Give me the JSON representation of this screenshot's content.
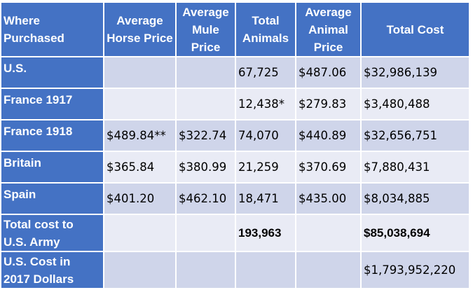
{
  "headers": [
    "Where Purchased",
    "Average Horse Price",
    "Average Mule Price",
    "Total Animals",
    "Average Animal Price",
    "Total Cost"
  ],
  "header_lines": {
    "where_1": "Where",
    "where_2": "Purchased",
    "horse_1": "Average",
    "horse_2": "Horse Price",
    "mule_1": "Average",
    "mule_2": "Mule",
    "mule_3": "Price",
    "total_1": "Total",
    "total_2": "Animals",
    "animal_1": "Average",
    "animal_2": "Animal",
    "animal_3": "Price",
    "cost_1": "Total Cost"
  },
  "rows": [
    {
      "label": "U.S.",
      "cells": [
        "",
        "",
        "67,725",
        "$487.06",
        "$32,986,139"
      ]
    },
    {
      "label": "France 1917",
      "cells": [
        "",
        "",
        "12,438*",
        "$279.83",
        "$3,480,488"
      ]
    },
    {
      "label": "France 1918",
      "cells": [
        "$489.84**",
        "$322.74",
        "74,070",
        "$440.89",
        "$32,656,751"
      ]
    },
    {
      "label": "Britain",
      "cells": [
        "$365.84",
        "$380.99",
        "21,259",
        "$370.69",
        "$7,880,431"
      ]
    },
    {
      "label": "Spain",
      "cells": [
        "$401.20",
        "$462.10",
        "18,471",
        "$435.00",
        "$8,034,885"
      ]
    },
    {
      "label_1": "Total cost to",
      "label_2": "U.S. Army",
      "cells": [
        "",
        "",
        "193,963",
        "",
        "$85,038,694"
      ]
    },
    {
      "label_1": "U.S. Cost in",
      "label_2": "2017 Dollars",
      "cells": [
        "",
        "",
        "",
        "",
        "$1,793,952,220"
      ]
    }
  ],
  "colors": {
    "header_bg": "#4472c4",
    "row_dark": "#cfd5ea",
    "row_light": "#e9ebf5"
  }
}
